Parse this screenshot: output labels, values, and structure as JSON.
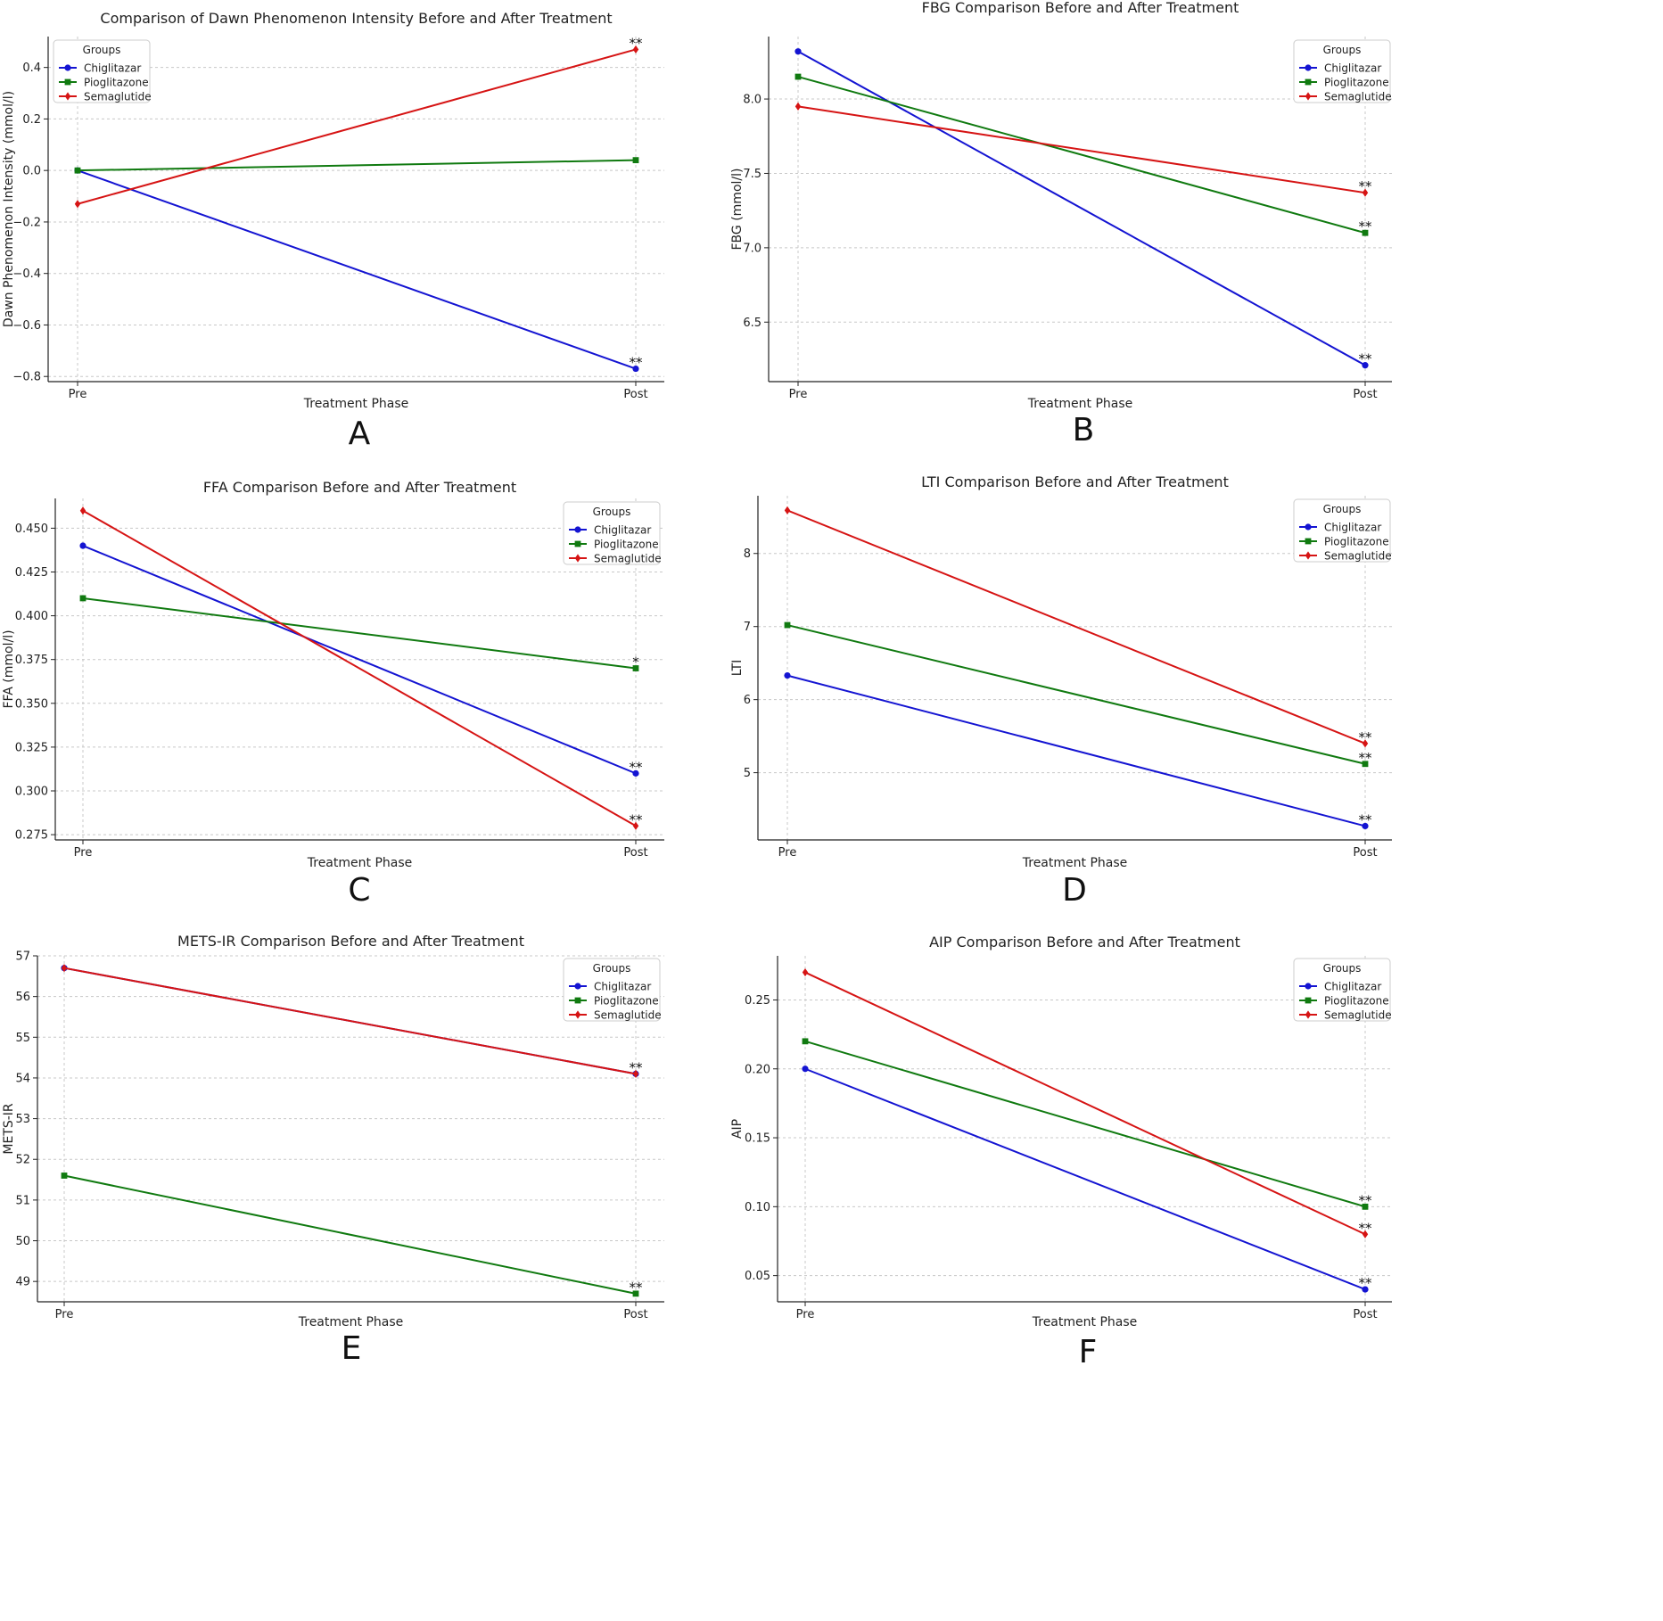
{
  "figure": {
    "x_axis_label": "Treatment Phase",
    "legend_title": "Groups",
    "panel_letters": [
      "A",
      "B",
      "C",
      "D",
      "E",
      "F"
    ]
  },
  "colors": {
    "Chiglitazar": "#1414d2",
    "Pioglitazone": "#107a10",
    "Semaglutide": "#d61414",
    "grid": "#c8c8c8",
    "text": "#222222"
  },
  "chart_data": [
    {
      "type": "line",
      "title": "Comparison of Dawn Phenomenon Intensity Before and After Treatment",
      "xlabel": "Treatment Phase",
      "ylabel": "Dawn Phenomenon Intensity (mmol/l)",
      "categories": [
        "Pre",
        "Post"
      ],
      "ylim": [
        -0.82,
        0.52
      ],
      "yticks": [
        -0.8,
        -0.6,
        -0.4,
        -0.2,
        0.0,
        0.2,
        0.4
      ],
      "ytick_labels": [
        "−0.8",
        "−0.6",
        "−0.4",
        "−0.2",
        "0.0",
        "0.2",
        "0.4"
      ],
      "legend_position": "top-left",
      "grid": true,
      "series": [
        {
          "name": "Chiglitazar",
          "marker": "circle",
          "values": [
            0.0,
            -0.77
          ],
          "annotations": [
            "",
            "**"
          ]
        },
        {
          "name": "Pioglitazone",
          "marker": "square",
          "values": [
            0.0,
            0.04
          ],
          "annotations": [
            "",
            ""
          ]
        },
        {
          "name": "Semaglutide",
          "marker": "diamond",
          "values": [
            -0.13,
            0.47
          ],
          "annotations": [
            "",
            "**"
          ]
        }
      ]
    },
    {
      "type": "line",
      "title": "FBG Comparison Before and After Treatment",
      "xlabel": "Treatment Phase",
      "ylabel": "FBG (mmol/l)",
      "categories": [
        "Pre",
        "Post"
      ],
      "ylim": [
        6.1,
        8.42
      ],
      "yticks": [
        6.5,
        7.0,
        7.5,
        8.0
      ],
      "ytick_labels": [
        "6.5",
        "7.0",
        "7.5",
        "8.0"
      ],
      "legend_position": "top-right",
      "grid": true,
      "series": [
        {
          "name": "Chiglitazar",
          "marker": "circle",
          "values": [
            8.32,
            6.21
          ],
          "annotations": [
            "",
            "**"
          ]
        },
        {
          "name": "Pioglitazone",
          "marker": "square",
          "values": [
            8.15,
            7.1
          ],
          "annotations": [
            "",
            "**"
          ]
        },
        {
          "name": "Semaglutide",
          "marker": "diamond",
          "values": [
            7.95,
            7.37
          ],
          "annotations": [
            "",
            "**"
          ]
        }
      ]
    },
    {
      "type": "line",
      "title": "FFA Comparison Before and After Treatment",
      "xlabel": "Treatment Phase",
      "ylabel": "FFA (mmol/l)",
      "categories": [
        "Pre",
        "Post"
      ],
      "ylim": [
        0.272,
        0.467
      ],
      "yticks": [
        0.275,
        0.3,
        0.325,
        0.35,
        0.375,
        0.4,
        0.425,
        0.45
      ],
      "ytick_labels": [
        "0.275",
        "0.300",
        "0.325",
        "0.350",
        "0.375",
        "0.400",
        "0.425",
        "0.450"
      ],
      "legend_position": "top-right",
      "grid": true,
      "series": [
        {
          "name": "Chiglitazar",
          "marker": "circle",
          "values": [
            0.44,
            0.31
          ],
          "annotations": [
            "",
            "**"
          ]
        },
        {
          "name": "Pioglitazone",
          "marker": "square",
          "values": [
            0.41,
            0.37
          ],
          "annotations": [
            "",
            "*"
          ]
        },
        {
          "name": "Semaglutide",
          "marker": "diamond",
          "values": [
            0.46,
            0.28
          ],
          "annotations": [
            "",
            "**"
          ]
        }
      ]
    },
    {
      "type": "line",
      "title": "LTI Comparison Before and After Treatment",
      "xlabel": "Treatment Phase",
      "ylabel": "LTI",
      "categories": [
        "Pre",
        "Post"
      ],
      "ylim": [
        4.08,
        8.79
      ],
      "yticks": [
        5,
        6,
        7,
        8
      ],
      "ytick_labels": [
        "5",
        "6",
        "7",
        "8"
      ],
      "legend_position": "top-right",
      "grid": true,
      "series": [
        {
          "name": "Chiglitazar",
          "marker": "circle",
          "values": [
            6.33,
            4.27
          ],
          "annotations": [
            "",
            "**"
          ]
        },
        {
          "name": "Pioglitazone",
          "marker": "square",
          "values": [
            7.02,
            5.12
          ],
          "annotations": [
            "",
            "**"
          ]
        },
        {
          "name": "Semaglutide",
          "marker": "diamond",
          "values": [
            8.59,
            5.4
          ],
          "annotations": [
            "",
            "**"
          ]
        }
      ]
    },
    {
      "type": "line",
      "title": "METS-IR Comparison Before and After Treatment",
      "xlabel": "Treatment Phase",
      "ylabel": "METS-IR",
      "categories": [
        "Pre",
        "Post"
      ],
      "ylim": [
        48.5,
        57.0
      ],
      "yticks": [
        49,
        50,
        51,
        52,
        53,
        54,
        55,
        56,
        57
      ],
      "ytick_labels": [
        "49",
        "50",
        "51",
        "52",
        "53",
        "54",
        "55",
        "56",
        "57"
      ],
      "legend_position": "top-right",
      "grid": true,
      "series": [
        {
          "name": "Chiglitazar",
          "marker": "circle",
          "values": [
            56.7,
            54.1
          ],
          "annotations": [
            "",
            ""
          ]
        },
        {
          "name": "Pioglitazone",
          "marker": "square",
          "values": [
            51.6,
            48.7
          ],
          "annotations": [
            "",
            "**"
          ]
        },
        {
          "name": "Semaglutide",
          "marker": "diamond",
          "values": [
            56.7,
            54.1
          ],
          "annotations": [
            "",
            "**"
          ]
        }
      ]
    },
    {
      "type": "line",
      "title": "AIP Comparison Before and After Treatment",
      "xlabel": "Treatment Phase",
      "ylabel": "AIP",
      "categories": [
        "Pre",
        "Post"
      ],
      "ylim": [
        0.031,
        0.282
      ],
      "yticks": [
        0.05,
        0.1,
        0.15,
        0.2,
        0.25
      ],
      "ytick_labels": [
        "0.05",
        "0.10",
        "0.15",
        "0.20",
        "0.25"
      ],
      "legend_position": "top-right",
      "grid": true,
      "series": [
        {
          "name": "Chiglitazar",
          "marker": "circle",
          "values": [
            0.2,
            0.04
          ],
          "annotations": [
            "",
            "**"
          ]
        },
        {
          "name": "Pioglitazone",
          "marker": "square",
          "values": [
            0.22,
            0.1
          ],
          "annotations": [
            "",
            "**"
          ]
        },
        {
          "name": "Semaglutide",
          "marker": "diamond",
          "values": [
            0.27,
            0.08
          ],
          "annotations": [
            "",
            "**"
          ]
        }
      ]
    }
  ]
}
